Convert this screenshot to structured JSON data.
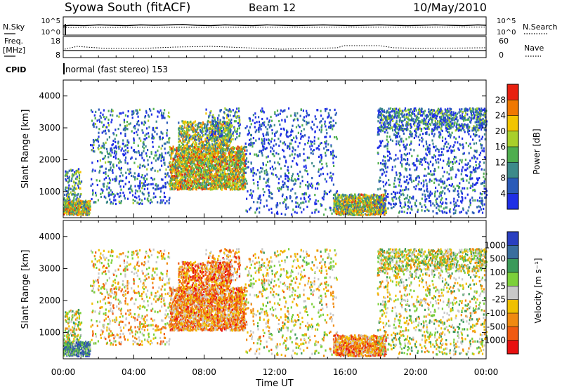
{
  "header": {
    "station": "Syowa South (fitACF)",
    "beam": "Beam 12",
    "date": "10/May/2010"
  },
  "noise_panel": {
    "left_label": "N.Sky",
    "right_label": "N.Search",
    "left_ticks": [
      "10^5",
      "10^0"
    ],
    "right_ticks": [
      "10^5",
      "10^0"
    ]
  },
  "freq_panel": {
    "left_label_line1": "Freq.",
    "left_label_line2": "[MHz]",
    "right_label": "Nave",
    "left_ticks": [
      "18",
      "8"
    ],
    "right_ticks": [
      "60",
      "0"
    ]
  },
  "cpid": {
    "label": "CPID",
    "value": "normal (fast stereo) 153"
  },
  "chart_data": [
    {
      "type": "heatmap",
      "name": "Power",
      "ylabel": "Slant Range [km]",
      "xlabel": "",
      "ylim": [
        180,
        4500
      ],
      "xlim": [
        0,
        24
      ],
      "y_ticks": [
        "1000",
        "2000",
        "3000",
        "4000"
      ],
      "colorbar_label": "Power [dB]",
      "colorbar_ticks": [
        "4",
        "8",
        "12",
        "16",
        "20",
        "24",
        "28"
      ],
      "colorbar_colors": [
        "#1f2fe6",
        "#2a5bb8",
        "#3d8a8a",
        "#4fae4f",
        "#a8cf2a",
        "#f2c500",
        "#f07800",
        "#e82010"
      ]
    },
    {
      "type": "heatmap",
      "name": "Velocity",
      "ylabel": "Slant Range [km]",
      "xlabel": "Time UT",
      "ylim": [
        180,
        4500
      ],
      "xlim": [
        0,
        24
      ],
      "y_ticks": [
        "1000",
        "2000",
        "3000",
        "4000"
      ],
      "x_ticks": [
        "00:00",
        "04:00",
        "08:00",
        "12:00",
        "16:00",
        "20:00",
        "00:00"
      ],
      "colorbar_label": "Velocity [m s⁻¹]",
      "colorbar_ticks": [
        "1000",
        "500",
        "100",
        "25",
        "-25",
        "-100",
        "-500",
        "-1000"
      ],
      "colorbar_colors": [
        "#2a3fc0",
        "#3a6e9e",
        "#3b9a5a",
        "#7cd03a",
        "#c8c8c8",
        "#f0c000",
        "#f08a10",
        "#f05a10",
        "#e81010"
      ]
    }
  ]
}
